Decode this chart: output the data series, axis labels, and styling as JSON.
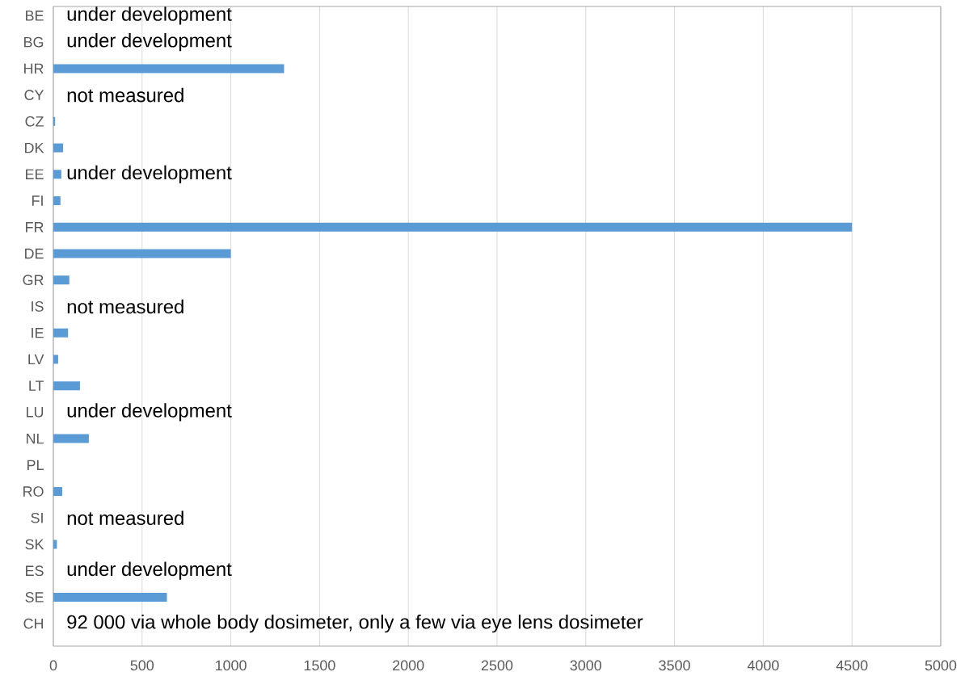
{
  "chart_data": {
    "type": "bar",
    "orientation": "horizontal",
    "categories": [
      "BE",
      "BG",
      "HR",
      "CY",
      "CZ",
      "DK",
      "EE",
      "FI",
      "FR",
      "DE",
      "GR",
      "IS",
      "IE",
      "LV",
      "LT",
      "LU",
      "NL",
      "PL",
      "RO",
      "SI",
      "SK",
      "ES",
      "SE",
      "CH"
    ],
    "values": [
      null,
      null,
      1300,
      null,
      10,
      55,
      45,
      40,
      4500,
      1000,
      90,
      null,
      83,
      27,
      150,
      null,
      200,
      null,
      50,
      null,
      20,
      null,
      640,
      null
    ],
    "color": "#5b9bd5",
    "xlim": [
      0,
      5000
    ],
    "xticks": [
      0,
      500,
      1000,
      1500,
      2000,
      2500,
      3000,
      3500,
      4000,
      4500,
      5000
    ],
    "grid": "x",
    "annotations": [
      "under development",
      "under development",
      "not measured",
      "under development",
      "not measured",
      "under development",
      "not measured",
      "under development",
      "92 000 via whole body dosimeter, only a few via eye lens dosimeter"
    ]
  }
}
